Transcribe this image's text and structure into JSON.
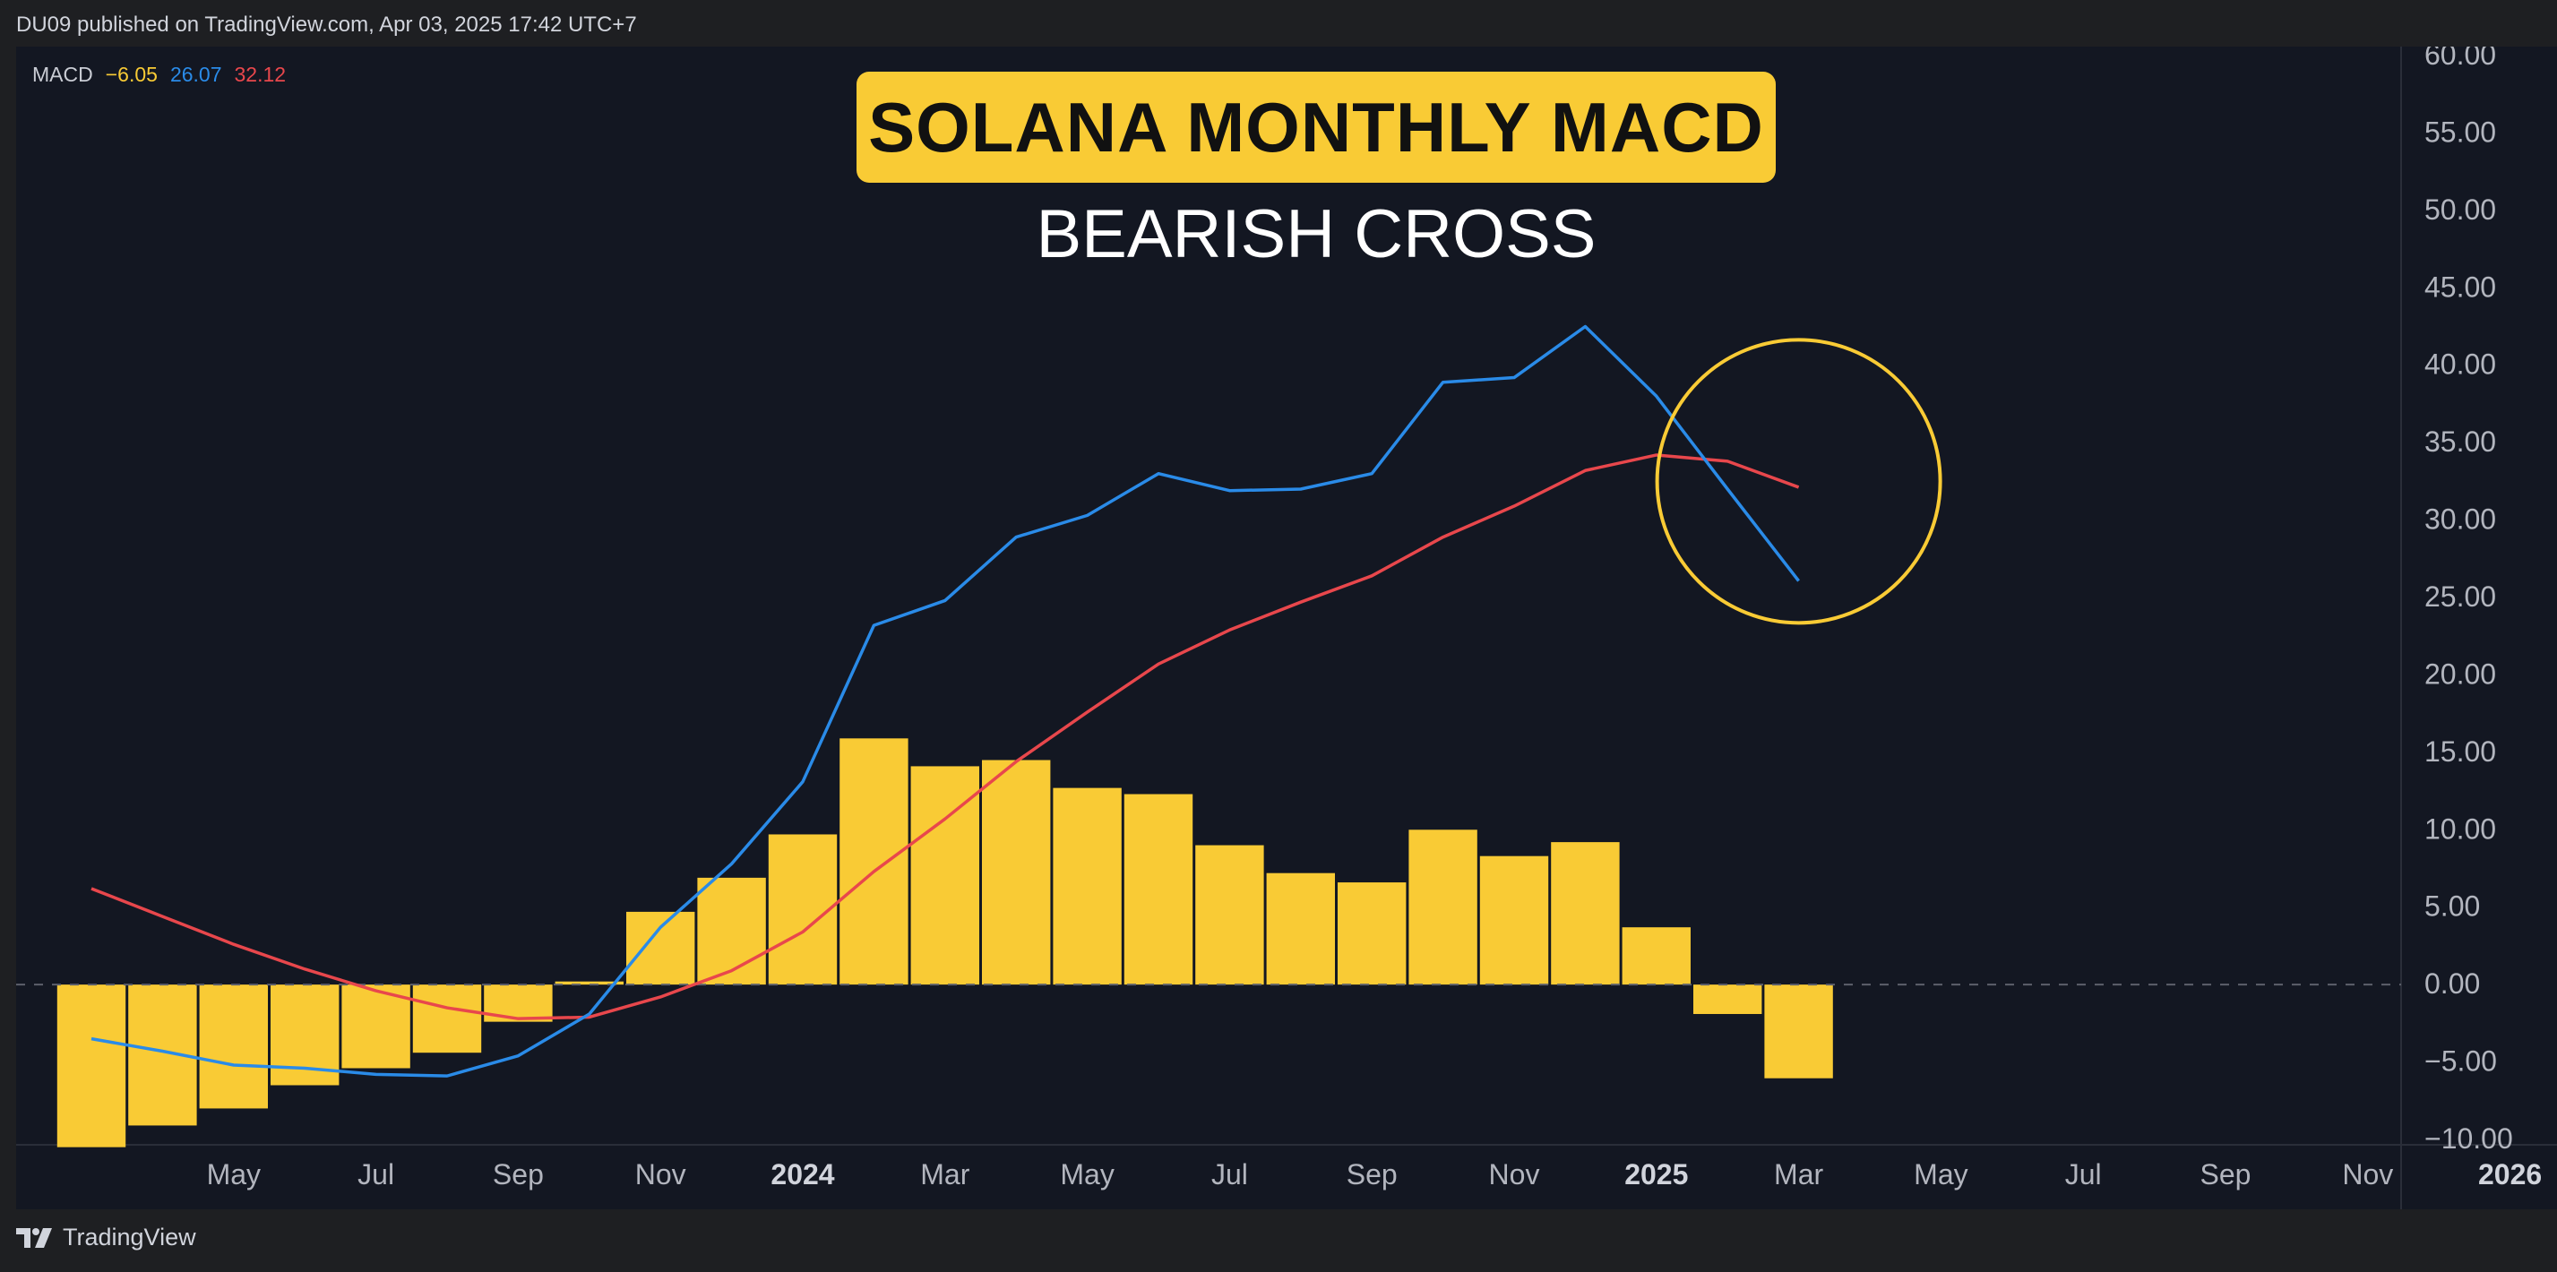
{
  "header": {
    "published_text": "DU09 published on TradingView.com, Apr 03, 2025 17:42 UTC+7"
  },
  "footer": {
    "brand": "TradingView",
    "logo_icon": "tradingview-logo-icon"
  },
  "legend": {
    "label": "MACD",
    "histogram_value": "−6.05",
    "macd_value": "26.07",
    "signal_value": "32.12"
  },
  "title": "SOLANA MONTHLY MACD",
  "subtitle": "BEARISH CROSS",
  "colors": {
    "background": "#131722",
    "histogram": "#f9cb35",
    "macd_line": "#2a8be8",
    "signal_line": "#e8474c",
    "annotation_circle": "#f9cb35",
    "title_badge": "#f9cb35"
  },
  "chart_data": {
    "type": "bar",
    "ylim": [
      -10,
      60
    ],
    "yticks": [
      "60.00",
      "55.00",
      "50.00",
      "45.00",
      "40.00",
      "35.00",
      "30.00",
      "25.00",
      "20.00",
      "15.00",
      "10.00",
      "5.00",
      "0.00",
      "−5.00",
      "−10.00"
    ],
    "x_tick_labels": [
      "May",
      "Jul",
      "Sep",
      "Nov",
      "2024",
      "Mar",
      "May",
      "Jul",
      "Sep",
      "Nov",
      "2025",
      "Mar",
      "May",
      "Jul",
      "Sep",
      "Nov",
      "2026"
    ],
    "categories": [
      "2023-03",
      "2023-04",
      "2023-05",
      "2023-06",
      "2023-07",
      "2023-08",
      "2023-09",
      "2023-10",
      "2023-11",
      "2023-12",
      "2024-01",
      "2024-02",
      "2024-03",
      "2024-04",
      "2024-05",
      "2024-06",
      "2024-07",
      "2024-08",
      "2024-09",
      "2024-10",
      "2024-11",
      "2024-12",
      "2025-01",
      "2025-02",
      "2025-03",
      "2025-04"
    ],
    "series": [
      {
        "type": "bar",
        "values": [
          -10.5,
          -9.1,
          -8.0,
          -6.5,
          -5.4,
          -4.4,
          -2.4,
          0.2,
          4.7,
          6.9,
          9.7,
          15.9,
          14.1,
          14.5,
          12.7,
          12.3,
          9.0,
          7.2,
          6.6,
          10.0,
          8.3,
          9.2,
          3.7,
          -1.9,
          -6.05,
          null
        ]
      },
      {
        "type": "line",
        "values": [
          -3.5,
          -4.3,
          -5.2,
          -5.4,
          -5.8,
          -5.9,
          -4.6,
          -1.9,
          3.7,
          7.8,
          13.1,
          23.2,
          24.8,
          28.9,
          30.3,
          33.0,
          31.9,
          32.0,
          33.0,
          38.9,
          39.2,
          42.5,
          38.0,
          32.0,
          26.07,
          null
        ]
      },
      {
        "type": "line",
        "values": [
          6.2,
          4.4,
          2.6,
          1.0,
          -0.4,
          -1.5,
          -2.2,
          -2.1,
          -0.8,
          0.9,
          3.4,
          7.3,
          10.7,
          14.4,
          17.6,
          20.7,
          22.9,
          24.7,
          26.4,
          28.9,
          30.9,
          33.2,
          34.2,
          33.8,
          32.12,
          null
        ]
      }
    ],
    "annotations": [
      {
        "type": "circle",
        "center_x": "2025-03",
        "center_y": 32.5
      }
    ]
  }
}
